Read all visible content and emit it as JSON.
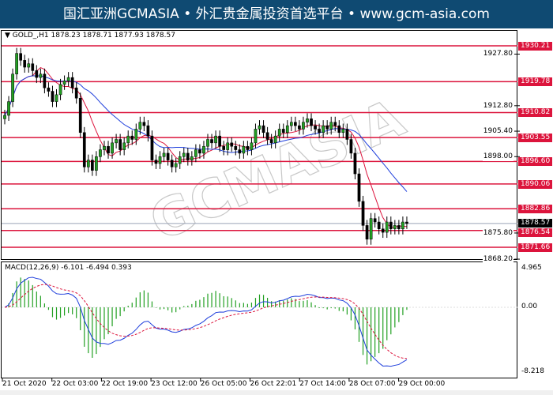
{
  "header": {
    "title": "国汇亚洲GCMASIA • 外汇贵金属投资首选平台 • www.gcm-asia.com"
  },
  "chart": {
    "symbol_info": "GOLD_,H1  1878.23 1878.71 1877.93 1878.57",
    "watermark": "GCMASIA",
    "price_axis": [
      "1927.80",
      "1912.80",
      "1905.40",
      "1898.00",
      "1875.80",
      "1868.20"
    ],
    "price_axis_values": [
      1927.8,
      1912.8,
      1905.4,
      1898.0,
      1875.8,
      1868.2
    ],
    "current_price": "1878.57",
    "levels": [
      "1930.21",
      "1919.78",
      "1910.82",
      "1903.55",
      "1896.60",
      "1890.06",
      "1882.86",
      "1876.54",
      "1871.66"
    ],
    "level_color": "#dc143c",
    "closes": [
      1910,
      1914,
      1922,
      1928,
      1926,
      1924,
      1925,
      1923,
      1921,
      1922,
      1918,
      1917,
      1914,
      1916,
      1919,
      1920,
      1921,
      1918,
      1915,
      1905,
      1895,
      1897,
      1894,
      1898,
      1900,
      1901,
      1899,
      1902,
      1903,
      1900,
      1902,
      1904,
      1903,
      1906,
      1908,
      1907,
      1904,
      1897,
      1896,
      1898,
      1899,
      1897,
      1895,
      1896,
      1898,
      1899,
      1897,
      1898,
      1900,
      1899,
      1901,
      1903,
      1902,
      1904,
      1901,
      1900,
      1902,
      1901,
      1900,
      1899,
      1901,
      1900,
      1902,
      1906,
      1907,
      1905,
      1903,
      1902,
      1904,
      1906,
      1905,
      1907,
      1908,
      1907,
      1906,
      1908,
      1909,
      1907,
      1906,
      1905,
      1907,
      1906,
      1908,
      1907,
      1905,
      1906,
      1903,
      1899,
      1893,
      1885,
      1878,
      1874,
      1880,
      1879,
      1877,
      1876,
      1879,
      1877,
      1878,
      1877,
      1879,
      1878.57
    ],
    "up_color": "#22a022",
    "down_color": "#000000",
    "ma_fast_color": "#dc143c",
    "ma_slow_color": "#1f3fdc"
  },
  "macd": {
    "label": "MACD(12,26,9) -6.101 -6.494 0.393",
    "axis": [
      "4.965",
      "0.00",
      "-8.218"
    ],
    "histogram_color": "#22a022",
    "macd_color": "#1f3fdc",
    "signal_color": "#dc143c"
  },
  "time_axis": [
    "21 Oct 2020",
    "22 Oct 03:00",
    "22 Oct 19:00",
    "23 Oct 12:00",
    "26 Oct 05:00",
    "26 Oct 22:01",
    "27 Oct 14:00",
    "28 Oct 07:00",
    "29 Oct 00:00"
  ]
}
